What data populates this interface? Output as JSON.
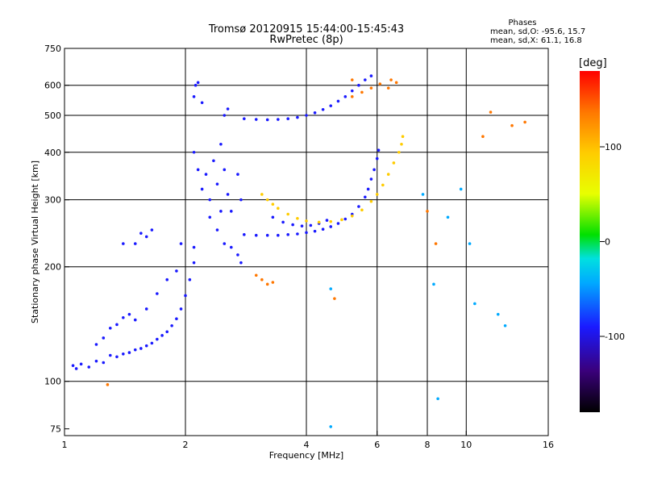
{
  "chart_data": {
    "type": "scatter",
    "title": "Tromsø 20120915 15:44:00-15:45:43",
    "subtitle": "RwPretec (8p)",
    "xlabel": "Frequency [MHz]",
    "ylabel": "Stationary phase Virtual Height [km]",
    "x_scale": "log",
    "y_scale": "log",
    "xlim": [
      1,
      16
    ],
    "ylim": [
      72,
      750
    ],
    "x_ticks": [
      1,
      2,
      4,
      6,
      8,
      10,
      16
    ],
    "x_gridlines": [
      2,
      4,
      6,
      8,
      10
    ],
    "y_ticks": [
      75,
      100,
      200,
      300,
      400,
      500,
      600,
      750
    ],
    "y_gridlines": [
      100,
      200,
      300,
      400,
      500,
      600
    ],
    "grid": true,
    "stats": {
      "heading": "Phases",
      "line_o": "mean, sd,O: -95.6, 15.7",
      "line_x": "mean, sd,X: 61.1, 16.8"
    },
    "colorbar": {
      "label": "[deg]",
      "ticks": [
        100,
        0,
        -100
      ],
      "range": [
        -180,
        180
      ],
      "colors": [
        "#000000",
        "#3a007a",
        "#1a1aff",
        "#00aaff",
        "#00e0e0",
        "#00e000",
        "#e8ff00",
        "#ffcc00",
        "#ff7700",
        "#ff0000"
      ]
    },
    "series": [
      {
        "phase": -100,
        "points": [
          [
            1.05,
            110
          ],
          [
            1.07,
            108
          ],
          [
            1.1,
            111
          ],
          [
            1.15,
            109
          ],
          [
            1.2,
            113
          ],
          [
            1.25,
            112
          ],
          [
            1.3,
            117
          ],
          [
            1.35,
            116
          ],
          [
            1.4,
            118
          ],
          [
            1.45,
            119
          ],
          [
            1.5,
            121
          ],
          [
            1.55,
            122
          ],
          [
            1.6,
            124
          ],
          [
            1.65,
            126
          ],
          [
            1.7,
            129
          ],
          [
            1.75,
            132
          ],
          [
            1.8,
            135
          ],
          [
            1.85,
            140
          ],
          [
            1.9,
            146
          ],
          [
            1.95,
            155
          ],
          [
            2.0,
            168
          ],
          [
            2.05,
            185
          ],
          [
            2.1,
            205
          ],
          [
            2.1,
            225
          ],
          [
            1.25,
            130
          ],
          [
            1.3,
            138
          ],
          [
            1.35,
            141
          ],
          [
            1.4,
            147
          ],
          [
            1.2,
            125
          ],
          [
            1.45,
            150
          ],
          [
            1.5,
            145
          ],
          [
            1.6,
            155
          ],
          [
            1.7,
            170
          ],
          [
            1.8,
            185
          ],
          [
            1.9,
            195
          ],
          [
            1.95,
            230
          ],
          [
            1.5,
            230
          ],
          [
            1.55,
            245
          ],
          [
            1.6,
            240
          ],
          [
            1.65,
            250
          ],
          [
            1.4,
            230
          ]
        ]
      },
      {
        "phase": -100,
        "points": [
          [
            2.1,
            560
          ],
          [
            2.12,
            600
          ],
          [
            2.15,
            610
          ],
          [
            2.2,
            540
          ],
          [
            2.1,
            400
          ],
          [
            2.15,
            360
          ],
          [
            2.2,
            320
          ],
          [
            2.25,
            350
          ],
          [
            2.3,
            300
          ],
          [
            2.35,
            380
          ],
          [
            2.4,
            330
          ],
          [
            2.45,
            280
          ],
          [
            2.5,
            360
          ],
          [
            2.55,
            310
          ],
          [
            2.6,
            280
          ],
          [
            2.4,
            250
          ],
          [
            2.5,
            230
          ],
          [
            2.6,
            225
          ],
          [
            2.7,
            215
          ],
          [
            2.75,
            205
          ],
          [
            2.3,
            270
          ],
          [
            2.45,
            420
          ],
          [
            2.5,
            500
          ],
          [
            2.55,
            520
          ],
          [
            2.7,
            350
          ],
          [
            2.75,
            300
          ]
        ]
      },
      {
        "phase": -110,
        "points": [
          [
            2.8,
            243
          ],
          [
            3.0,
            242
          ],
          [
            3.2,
            242
          ],
          [
            3.4,
            242
          ],
          [
            3.6,
            243
          ],
          [
            3.8,
            244
          ],
          [
            4.0,
            246
          ],
          [
            4.2,
            248
          ],
          [
            4.4,
            251
          ],
          [
            4.6,
            255
          ],
          [
            4.8,
            260
          ],
          [
            5.0,
            267
          ],
          [
            5.2,
            275
          ],
          [
            5.4,
            288
          ],
          [
            5.6,
            305
          ],
          [
            5.7,
            320
          ],
          [
            5.8,
            340
          ],
          [
            5.9,
            360
          ],
          [
            6.0,
            385
          ],
          [
            6.05,
            405
          ]
        ]
      },
      {
        "phase": -115,
        "points": [
          [
            2.8,
            490
          ],
          [
            3.0,
            488
          ],
          [
            3.2,
            487
          ],
          [
            3.4,
            488
          ],
          [
            3.6,
            490
          ],
          [
            3.8,
            494
          ],
          [
            4.0,
            500
          ],
          [
            4.2,
            508
          ],
          [
            4.4,
            518
          ],
          [
            4.6,
            530
          ],
          [
            4.8,
            545
          ],
          [
            5.0,
            560
          ],
          [
            5.2,
            580
          ],
          [
            5.4,
            600
          ],
          [
            5.6,
            620
          ],
          [
            5.8,
            635
          ]
        ]
      },
      {
        "phase": -120,
        "points": [
          [
            3.3,
            270
          ],
          [
            3.5,
            262
          ],
          [
            3.7,
            258
          ],
          [
            3.9,
            256
          ],
          [
            4.1,
            257
          ],
          [
            4.3,
            260
          ],
          [
            4.5,
            265
          ]
        ]
      },
      {
        "phase": 110,
        "points": [
          [
            3.1,
            310
          ],
          [
            3.2,
            300
          ],
          [
            3.3,
            292
          ],
          [
            3.4,
            285
          ],
          [
            3.6,
            275
          ],
          [
            3.8,
            268
          ],
          [
            4.0,
            264
          ],
          [
            4.3,
            262
          ],
          [
            4.6,
            263
          ],
          [
            4.9,
            266
          ],
          [
            5.2,
            272
          ],
          [
            5.5,
            282
          ],
          [
            5.8,
            297
          ],
          [
            6.0,
            310
          ],
          [
            6.2,
            328
          ],
          [
            6.4,
            350
          ],
          [
            6.6,
            375
          ],
          [
            6.8,
            400
          ],
          [
            6.9,
            420
          ],
          [
            6.95,
            440
          ]
        ]
      },
      {
        "phase": 120,
        "points": [
          [
            5.2,
            560
          ],
          [
            5.5,
            575
          ],
          [
            5.8,
            590
          ],
          [
            6.1,
            605
          ],
          [
            6.5,
            620
          ],
          [
            3.2,
            180
          ],
          [
            3.3,
            182
          ],
          [
            3.1,
            185
          ],
          [
            3.0,
            190
          ]
        ]
      },
      {
        "phase": 140,
        "points": [
          [
            5.2,
            620
          ],
          [
            6.4,
            590
          ],
          [
            6.7,
            610
          ],
          [
            8.0,
            280
          ],
          [
            8.4,
            230
          ],
          [
            11.0,
            440
          ],
          [
            11.5,
            510
          ],
          [
            13.0,
            470
          ],
          [
            14.0,
            480
          ],
          [
            1.28,
            98
          ],
          [
            4.7,
            165
          ]
        ]
      },
      {
        "phase": -80,
        "points": [
          [
            8.3,
            180
          ],
          [
            9.0,
            270
          ],
          [
            9.7,
            320
          ],
          [
            10.2,
            230
          ],
          [
            12.0,
            150
          ],
          [
            12.5,
            140
          ],
          [
            8.5,
            90
          ],
          [
            4.6,
            76
          ],
          [
            4.6,
            175
          ],
          [
            7.8,
            310
          ],
          [
            10.5,
            160
          ]
        ]
      }
    ]
  }
}
